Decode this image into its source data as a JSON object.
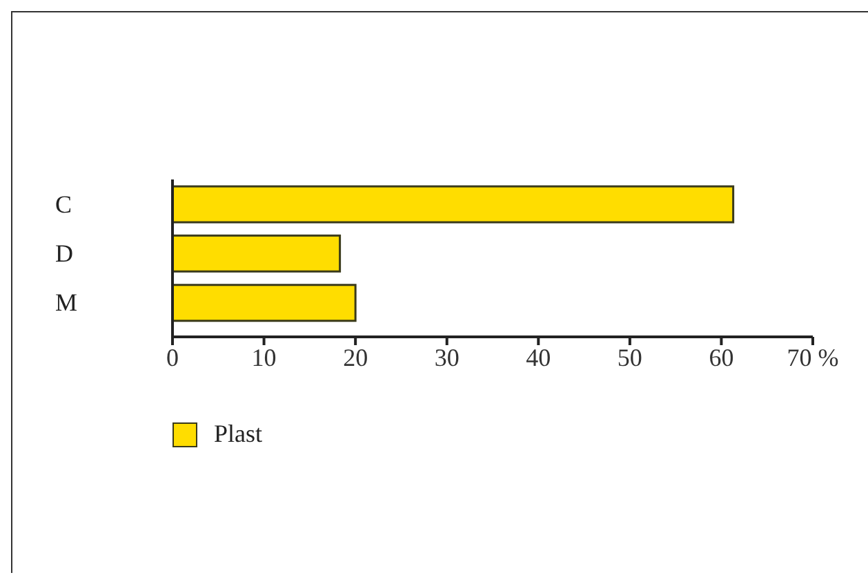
{
  "chart_data": {
    "type": "bar",
    "orientation": "horizontal",
    "categories": [
      "C",
      "D",
      "M"
    ],
    "series": [
      {
        "name": "Plast",
        "color": "#ffdd00",
        "values": [
          61.3,
          18.3,
          20.0
        ]
      }
    ],
    "xlim": [
      0,
      70
    ],
    "xticks": [
      0,
      10,
      20,
      30,
      40,
      50,
      60,
      {
        "value": 70,
        "label": "70 %"
      }
    ],
    "grid": false,
    "legend": "bottom left"
  }
}
